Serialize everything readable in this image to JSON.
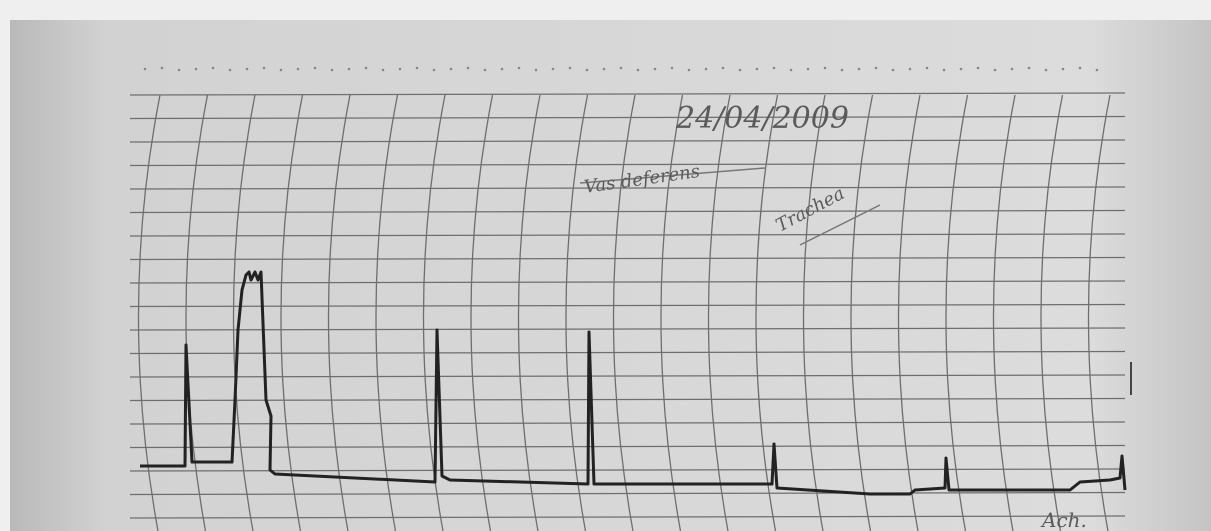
{
  "annotations": {
    "date": "24/04/2009",
    "tissue_1": "Vas deferens",
    "tissue_2": "Trachea",
    "drug": "Ach."
  }
}
